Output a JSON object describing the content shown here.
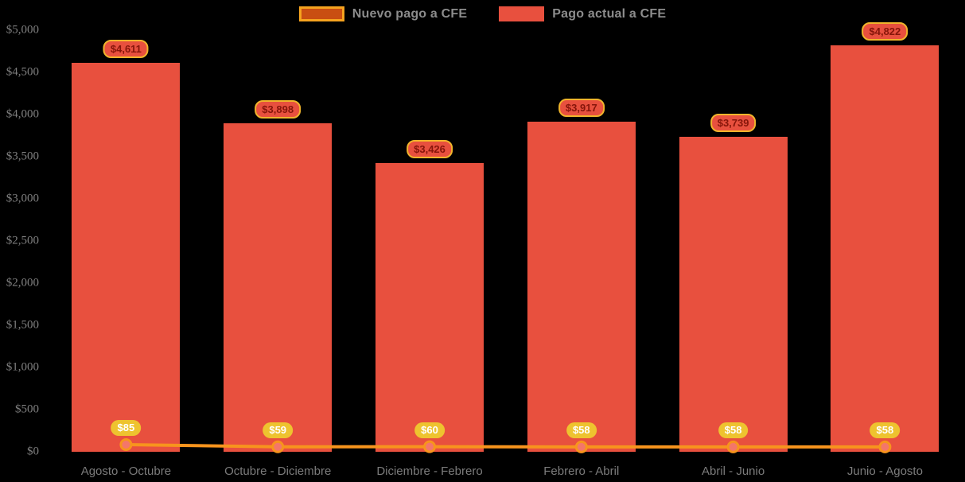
{
  "legend": {
    "items": [
      {
        "label": "Nuevo pago a CFE",
        "swatch_fill": "#c94e12",
        "swatch_border": "#f5a31f"
      },
      {
        "label": "Pago actual a CFE",
        "swatch_fill": "#e8503e",
        "swatch_border": "#e8503e"
      }
    ],
    "text_color": "#8c8c8c"
  },
  "chart_data": {
    "type": "bar",
    "title": "",
    "xlabel": "",
    "ylabel": "",
    "categories": [
      "Agosto - Octubre",
      "Octubre - Diciembre",
      "Diciembre - Febrero",
      "Febrero - Abril",
      "Abril - Junio",
      "Junio - Agosto"
    ],
    "series": [
      {
        "name": "Pago actual a CFE",
        "render": "bar",
        "color": "#e8503e",
        "values": [
          4611,
          3898,
          3426,
          3917,
          3739,
          4822
        ],
        "labels": [
          "$4,611",
          "$3,898",
          "$3,426",
          "$3,917",
          "$3,739",
          "$4,822"
        ],
        "label_bg": "#e8503e",
        "label_border": "#f0b42c",
        "label_text": "#86150a"
      },
      {
        "name": "Nuevo pago a CFE",
        "render": "line",
        "color": "#f7941d",
        "values": [
          85,
          59,
          60,
          58,
          58,
          58
        ],
        "labels": [
          "$85",
          "$59",
          "$60",
          "$58",
          "$58",
          "$58"
        ],
        "label_bg": "#eec32f",
        "label_text": "#ffffff",
        "marker_fill": "#f4766a",
        "marker_stroke": "#f7941d"
      }
    ],
    "ylim": [
      0,
      5000
    ],
    "y_ticks": [
      {
        "value": 5000,
        "label": "$5,000"
      },
      {
        "value": 4500,
        "label": "$4,500"
      },
      {
        "value": 4000,
        "label": "$4,000"
      },
      {
        "value": 3500,
        "label": "$3,500"
      },
      {
        "value": 3000,
        "label": "$3,000"
      },
      {
        "value": 2500,
        "label": "$2,500"
      },
      {
        "value": 2000,
        "label": "$2,000"
      },
      {
        "value": 1500,
        "label": "$1,500"
      },
      {
        "value": 1000,
        "label": "$1,000"
      },
      {
        "value": 500,
        "label": "$500"
      },
      {
        "value": 0,
        "label": "$0"
      }
    ],
    "grid": false,
    "legend_position": "top-center",
    "axis_text_color": "#7f7f7f"
  }
}
